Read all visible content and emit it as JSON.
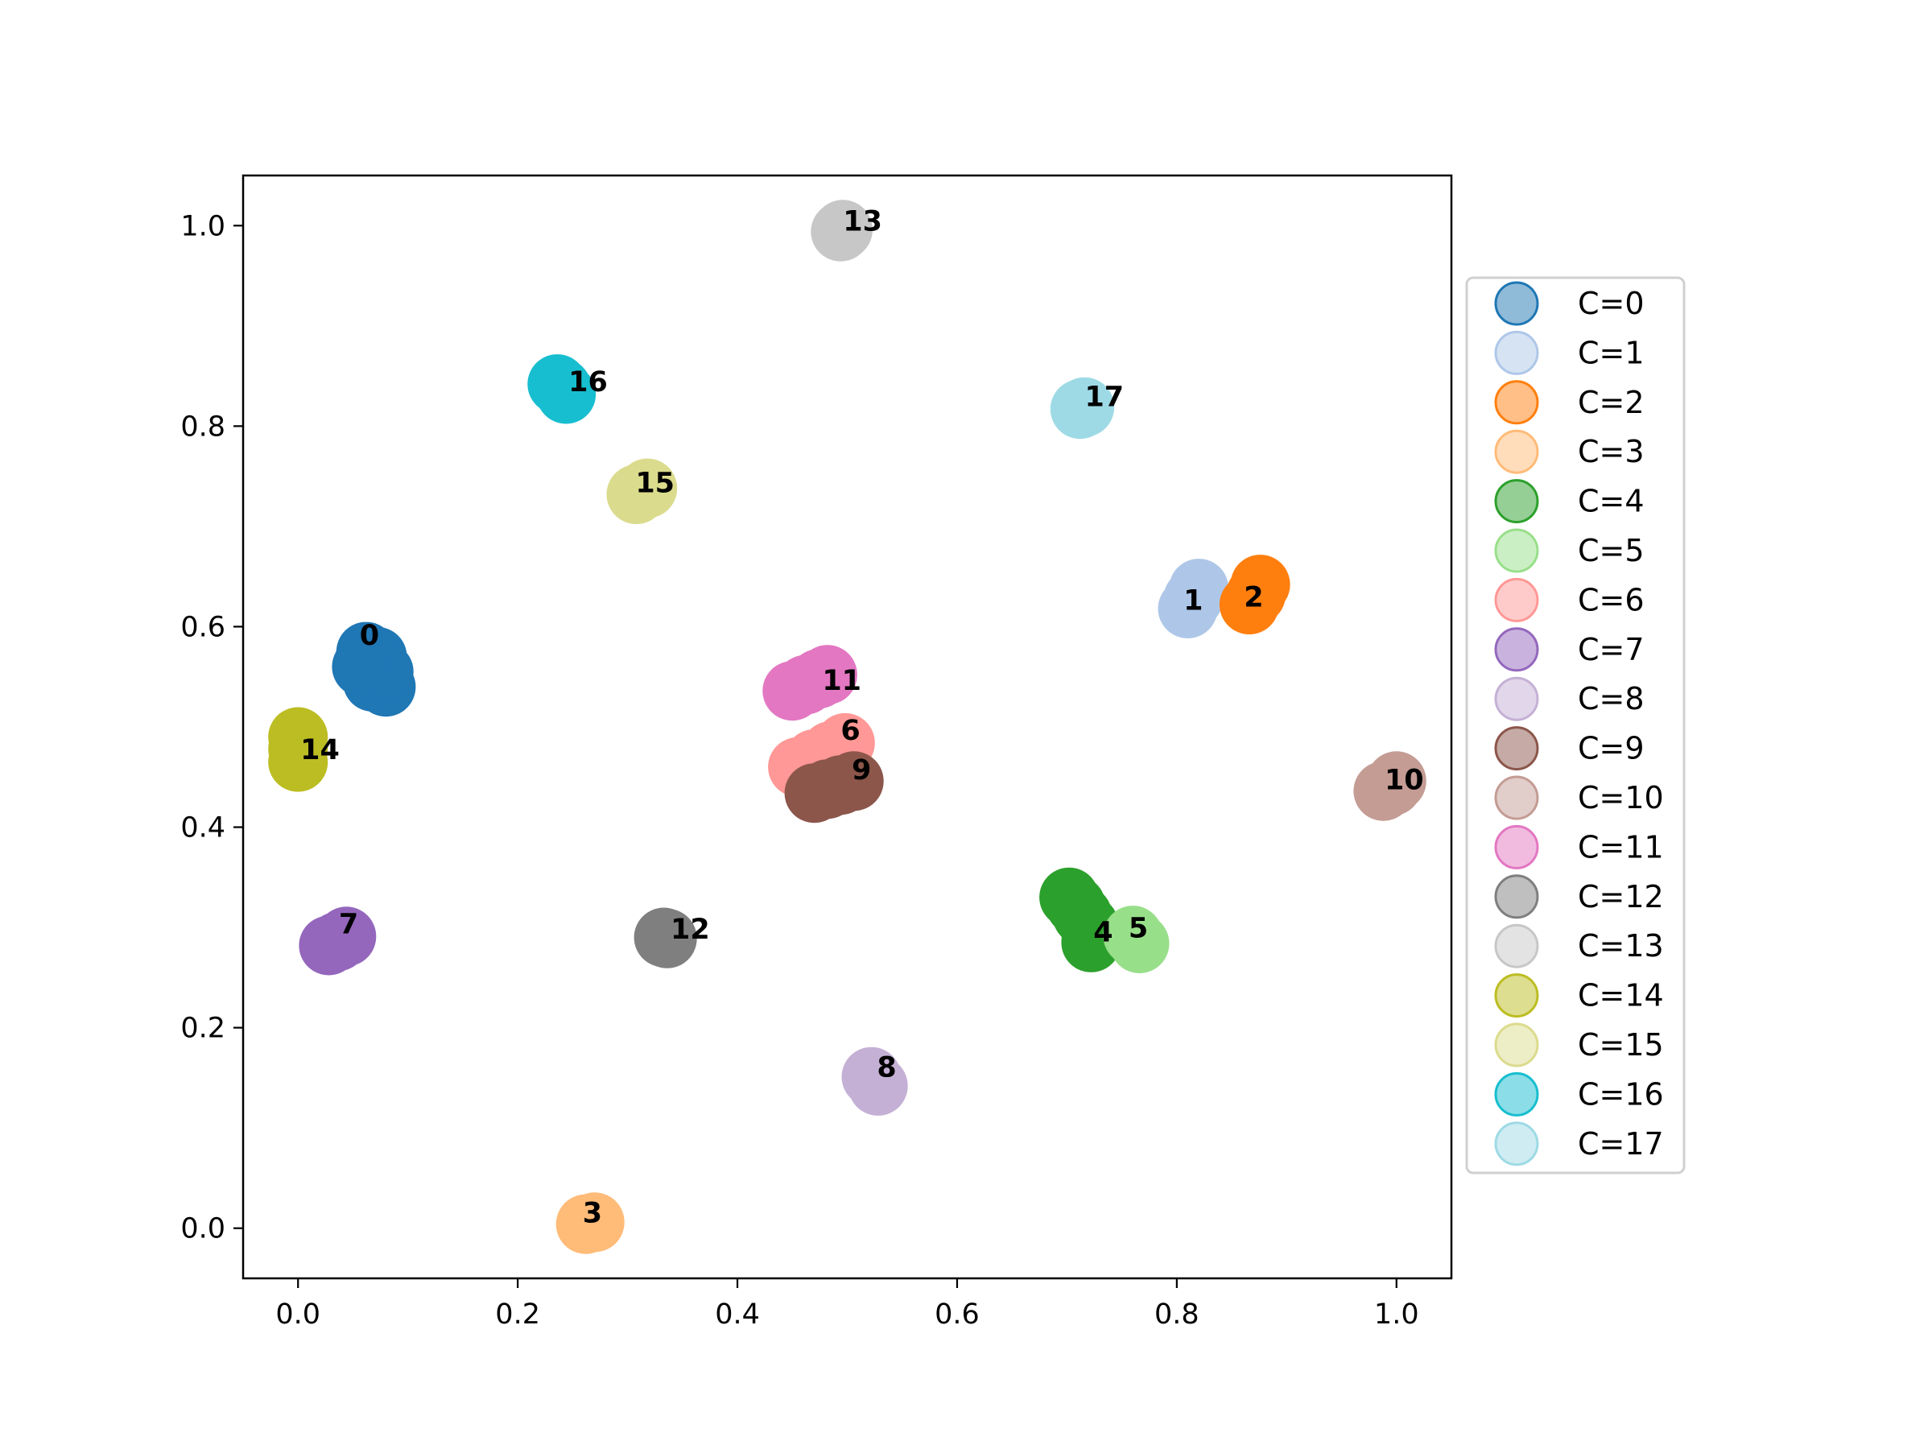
{
  "chart_data": {
    "type": "scatter",
    "title": "",
    "xlabel": "",
    "ylabel": "",
    "xlim": [
      -0.05,
      1.05
    ],
    "ylim": [
      -0.05,
      1.05
    ],
    "xticks": [
      "0.0",
      "0.2",
      "0.4",
      "0.6",
      "0.8",
      "1.0"
    ],
    "yticks": [
      "0.0",
      "0.2",
      "0.4",
      "0.6",
      "0.8",
      "1.0"
    ],
    "grid": false,
    "legend_position": "right, outside plot",
    "series": [
      {
        "name": "C=0",
        "color": "#1f77b4",
        "label": "0",
        "label_at": [
          0.065,
          0.59
        ],
        "points": [
          [
            0.06,
            0.565
          ],
          [
            0.065,
            0.555
          ],
          [
            0.07,
            0.56
          ],
          [
            0.075,
            0.55
          ],
          [
            0.08,
            0.54
          ],
          [
            0.062,
            0.575
          ],
          [
            0.072,
            0.57
          ],
          [
            0.068,
            0.545
          ],
          [
            0.078,
            0.555
          ],
          [
            0.058,
            0.56
          ]
        ]
      },
      {
        "name": "C=1",
        "color": "#aec7e8",
        "label": "1",
        "label_at": [
          0.815,
          0.625
        ],
        "points": [
          [
            0.81,
            0.618
          ],
          [
            0.815,
            0.628
          ],
          [
            0.82,
            0.638
          ]
        ]
      },
      {
        "name": "C=2",
        "color": "#ff7f0e",
        "label": "2",
        "label_at": [
          0.87,
          0.628
        ],
        "points": [
          [
            0.866,
            0.622
          ],
          [
            0.872,
            0.632
          ],
          [
            0.876,
            0.642
          ]
        ]
      },
      {
        "name": "C=3",
        "color": "#ffbb78",
        "label": "3",
        "label_at": [
          0.268,
          0.014
        ],
        "points": [
          [
            0.262,
            0.004
          ],
          [
            0.27,
            0.006
          ]
        ]
      },
      {
        "name": "C=4",
        "color": "#2ca02c",
        "label": "4",
        "label_at": [
          0.733,
          0.294
        ],
        "points": [
          [
            0.702,
            0.33
          ],
          [
            0.708,
            0.322
          ],
          [
            0.714,
            0.312
          ],
          [
            0.72,
            0.302
          ],
          [
            0.726,
            0.29
          ],
          [
            0.722,
            0.285
          ]
        ]
      },
      {
        "name": "C=5",
        "color": "#98df8a",
        "label": "5",
        "label_at": [
          0.765,
          0.298
        ],
        "points": [
          [
            0.76,
            0.292
          ],
          [
            0.766,
            0.284
          ]
        ]
      },
      {
        "name": "C=6",
        "color": "#ff9896",
        "label": "6",
        "label_at": [
          0.503,
          0.495
        ],
        "points": [
          [
            0.455,
            0.46
          ],
          [
            0.47,
            0.468
          ],
          [
            0.485,
            0.476
          ],
          [
            0.498,
            0.484
          ]
        ]
      },
      {
        "name": "C=7",
        "color": "#9467bd",
        "label": "7",
        "label_at": [
          0.046,
          0.302
        ],
        "points": [
          [
            0.028,
            0.282
          ],
          [
            0.036,
            0.286
          ],
          [
            0.044,
            0.291
          ]
        ]
      },
      {
        "name": "C=8",
        "color": "#c5b0d5",
        "label": "8",
        "label_at": [
          0.536,
          0.159
        ],
        "points": [
          [
            0.522,
            0.151
          ],
          [
            0.528,
            0.142
          ]
        ]
      },
      {
        "name": "C=9",
        "color": "#8c564b",
        "label": "9",
        "label_at": [
          0.513,
          0.456
        ],
        "points": [
          [
            0.47,
            0.434
          ],
          [
            0.482,
            0.438
          ],
          [
            0.494,
            0.442
          ],
          [
            0.506,
            0.446
          ]
        ]
      },
      {
        "name": "C=10",
        "color": "#c49c94",
        "label": "10",
        "label_at": [
          1.007,
          0.446
        ],
        "points": [
          [
            0.988,
            0.436
          ],
          [
            0.996,
            0.441
          ],
          [
            1.0,
            0.446
          ]
        ]
      },
      {
        "name": "C=11",
        "color": "#e377c2",
        "label": "11",
        "label_at": [
          0.495,
          0.545
        ],
        "points": [
          [
            0.45,
            0.536
          ],
          [
            0.462,
            0.542
          ],
          [
            0.474,
            0.548
          ],
          [
            0.482,
            0.552
          ]
        ]
      },
      {
        "name": "C=12",
        "color": "#7f7f7f",
        "label": "12",
        "label_at": [
          0.357,
          0.297
        ],
        "points": [
          [
            0.333,
            0.29
          ],
          [
            0.336,
            0.289
          ]
        ]
      },
      {
        "name": "C=13",
        "color": "#c7c7c7",
        "label": "13",
        "label_at": [
          0.514,
          1.003
        ],
        "points": [
          [
            0.494,
            0.994
          ],
          [
            0.496,
            0.996
          ]
        ]
      },
      {
        "name": "C=14",
        "color": "#bcbd22",
        "label": "14",
        "label_at": [
          0.02,
          0.476
        ],
        "points": [
          [
            0.0,
            0.49
          ],
          [
            0.0,
            0.478
          ],
          [
            0.0,
            0.465
          ]
        ]
      },
      {
        "name": "C=15",
        "color": "#dbdb8d",
        "label": "15",
        "label_at": [
          0.325,
          0.742
        ],
        "points": [
          [
            0.308,
            0.732
          ],
          [
            0.318,
            0.738
          ]
        ]
      },
      {
        "name": "C=16",
        "color": "#17becf",
        "label": "16",
        "label_at": [
          0.264,
          0.843
        ],
        "points": [
          [
            0.236,
            0.842
          ],
          [
            0.244,
            0.832
          ],
          [
            0.24,
            0.838
          ]
        ]
      },
      {
        "name": "C=17",
        "color": "#9edae5",
        "label": "17",
        "label_at": [
          0.734,
          0.828
        ],
        "points": [
          [
            0.712,
            0.817
          ],
          [
            0.716,
            0.819
          ]
        ]
      }
    ]
  }
}
